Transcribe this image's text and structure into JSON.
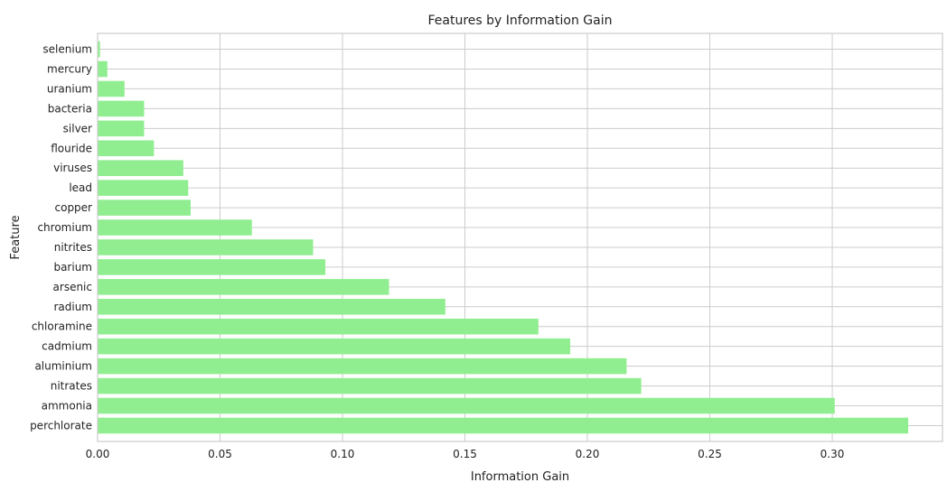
{
  "chart_data": {
    "type": "bar",
    "orientation": "horizontal",
    "title": "Features by Information Gain",
    "xlabel": "Information Gain",
    "ylabel": "Feature",
    "xlim": [
      0,
      0.345
    ],
    "x_ticks": [
      0.0,
      0.05,
      0.1,
      0.15,
      0.2,
      0.25,
      0.3
    ],
    "x_tick_labels": [
      "0.00",
      "0.05",
      "0.10",
      "0.15",
      "0.20",
      "0.25",
      "0.30"
    ],
    "grid": true,
    "bar_color": "#90ee90",
    "categories": [
      "perchlorate",
      "ammonia",
      "nitrates",
      "aluminium",
      "cadmium",
      "chloramine",
      "radium",
      "arsenic",
      "barium",
      "nitrites",
      "chromium",
      "copper",
      "lead",
      "viruses",
      "flouride",
      "silver",
      "bacteria",
      "uranium",
      "mercury",
      "selenium"
    ],
    "values": [
      0.331,
      0.301,
      0.222,
      0.216,
      0.193,
      0.18,
      0.142,
      0.119,
      0.093,
      0.088,
      0.063,
      0.038,
      0.037,
      0.035,
      0.023,
      0.019,
      0.019,
      0.011,
      0.004,
      0.001
    ]
  }
}
